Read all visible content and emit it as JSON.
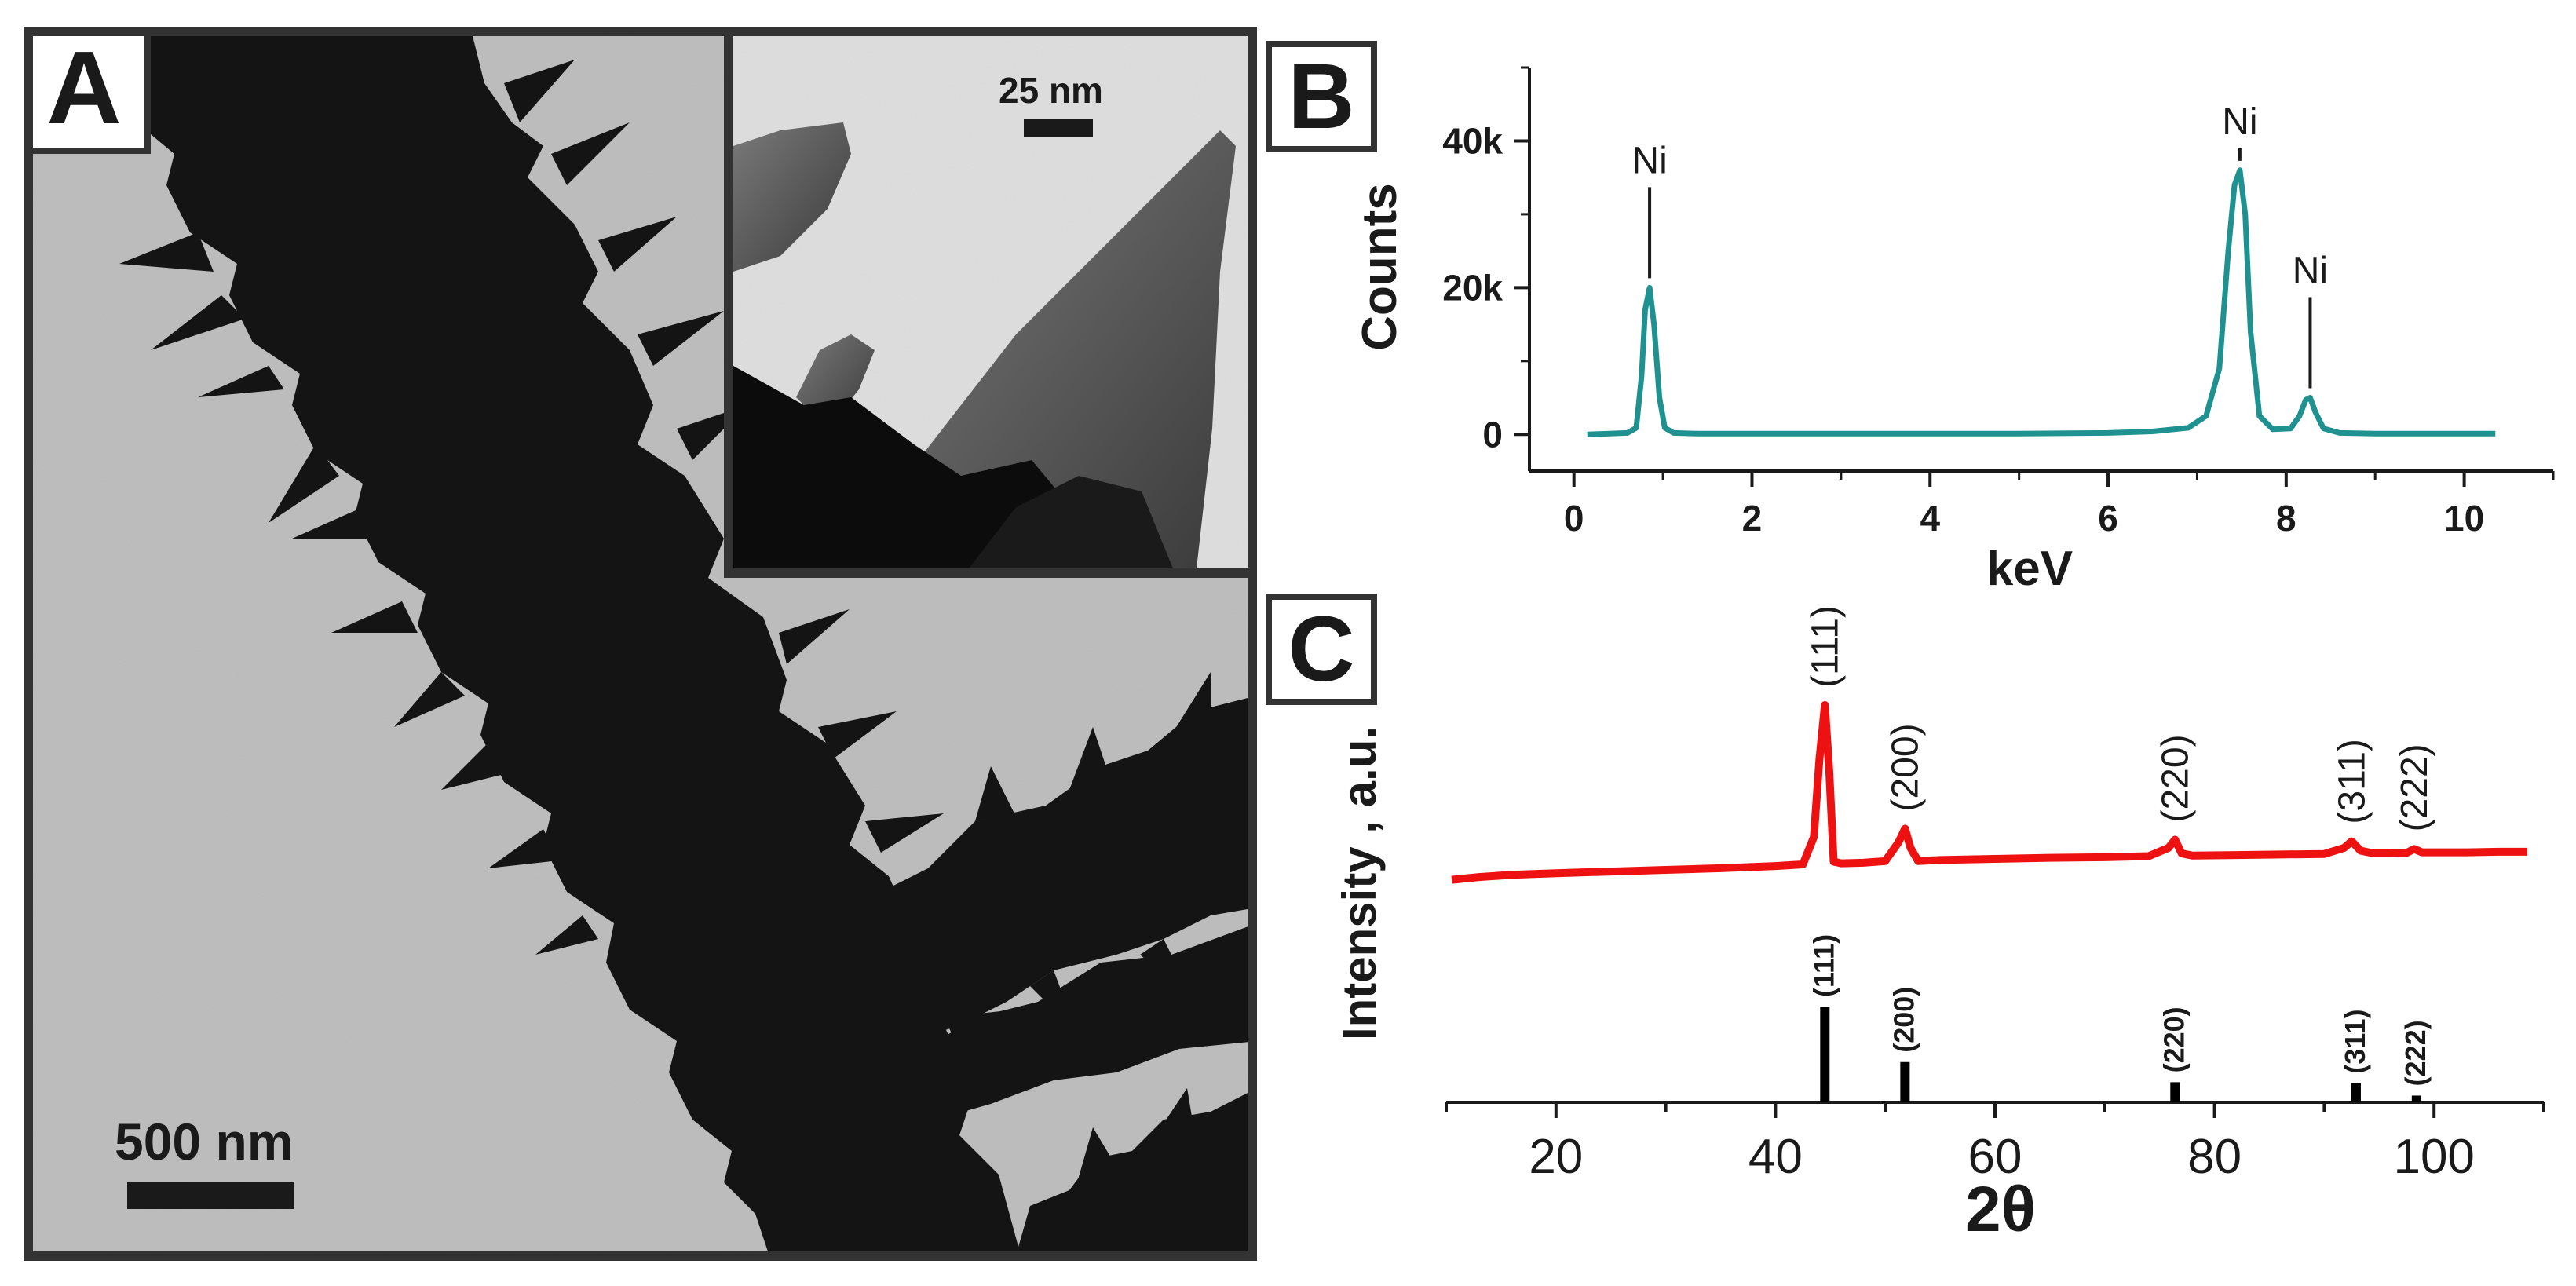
{
  "panels": {
    "a_label": "A",
    "b_label": "B",
    "c_label": "C"
  },
  "micrograph": {
    "scale_label": "500 nm",
    "inset_scale_label": "25 nm"
  },
  "colors": {
    "eds_line": "#1f9191",
    "xrd_line": "#ee1111",
    "reference_bars": "#000000"
  },
  "chart_data": [
    {
      "type": "line",
      "panel": "B",
      "xlabel": "keV",
      "ylabel": "Counts",
      "xlim": [
        -0.5,
        11
      ],
      "ylim": [
        -5000,
        50000
      ],
      "xticks": [
        0,
        2,
        4,
        6,
        8,
        10
      ],
      "yticks": [
        0,
        20000,
        40000
      ],
      "ytick_labels": [
        "0",
        "20k",
        "40k"
      ],
      "series": [
        {
          "x": [
            0.15,
            0.4,
            0.6,
            0.7,
            0.76,
            0.8,
            0.85,
            0.9,
            0.96,
            1.02,
            1.12,
            1.4,
            2,
            3,
            4,
            5,
            6,
            6.5,
            6.9,
            7.1,
            7.25,
            7.35,
            7.42,
            7.48,
            7.54,
            7.6,
            7.7,
            7.85,
            8.05,
            8.15,
            8.22,
            8.27,
            8.33,
            8.42,
            8.6,
            9,
            10,
            10.35
          ],
          "y": [
            0,
            100,
            200,
            900,
            8000,
            17000,
            20000,
            15000,
            5000,
            900,
            200,
            100,
            100,
            100,
            100,
            100,
            200,
            400,
            900,
            2500,
            9000,
            25000,
            34000,
            36000,
            30000,
            14000,
            2500,
            700,
            800,
            2500,
            4700,
            5000,
            3000,
            800,
            200,
            100,
            100,
            100
          ]
        }
      ],
      "annotations": [
        {
          "label": "Ni",
          "x": 0.85,
          "y": 20000
        },
        {
          "label": "Ni",
          "x": 7.48,
          "y": 36000
        },
        {
          "label": "Ni",
          "x": 8.27,
          "y": 5000
        }
      ]
    },
    {
      "type": "line",
      "panel": "C",
      "xlabel": "2θ",
      "ylabel": "Intensity , a.u.",
      "xlim": [
        10,
        110
      ],
      "xticks": [
        20,
        40,
        60,
        80,
        100
      ],
      "series": [
        {
          "x": [
            10.5,
            13,
            16,
            20,
            25,
            30,
            35,
            40,
            42.5,
            43.5,
            44,
            44.5,
            44.9,
            45.3,
            46,
            48,
            50,
            51.2,
            51.8,
            52.3,
            53,
            55,
            60,
            65,
            70,
            74,
            75.8,
            76.4,
            77,
            78,
            82,
            86,
            90,
            91.8,
            92.5,
            93.3,
            94.5,
            96,
            97.5,
            98.2,
            98.9,
            100,
            103,
            106,
            108.5
          ],
          "y": [
            0.02,
            0.07,
            0.11,
            0.14,
            0.17,
            0.2,
            0.23,
            0.27,
            0.3,
            0.8,
            2.2,
            3.2,
            2,
            0.35,
            0.32,
            0.33,
            0.36,
            0.7,
            0.95,
            0.6,
            0.36,
            0.38,
            0.4,
            0.42,
            0.43,
            0.45,
            0.6,
            0.75,
            0.5,
            0.46,
            0.47,
            0.48,
            0.49,
            0.6,
            0.72,
            0.55,
            0.5,
            0.5,
            0.51,
            0.58,
            0.52,
            0.52,
            0.52,
            0.53,
            0.53
          ]
        }
      ],
      "peak_labels": [
        {
          "label": "(111)",
          "x": 44.5
        },
        {
          "label": "(200)",
          "x": 51.8
        },
        {
          "label": "(220)",
          "x": 76.4
        },
        {
          "label": "(311)",
          "x": 92.5
        },
        {
          "label": "(222)",
          "x": 98.2
        }
      ],
      "reference_bars": [
        {
          "label": "(111)",
          "x": 44.5,
          "value": 100
        },
        {
          "label": "(200)",
          "x": 51.8,
          "value": 42
        },
        {
          "label": "(220)",
          "x": 76.4,
          "value": 21
        },
        {
          "label": "(311)",
          "x": 92.9,
          "value": 20
        },
        {
          "label": "(222)",
          "x": 98.4,
          "value": 7
        }
      ]
    }
  ]
}
